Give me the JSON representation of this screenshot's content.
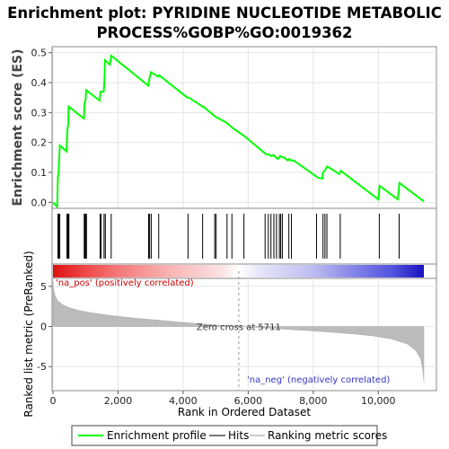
{
  "title_line1": "Enrichment plot: PYRIDINE NUCLEOTIDE METABOLIC",
  "title_line2": "PROCESS%GOBP%GO:0019362",
  "y_label_es": "Enrichment score (ES)",
  "y_label_rank": "Ranked list metric (PreRanked)",
  "x_label": "Rank in Ordered Dataset",
  "pos_label": "'na_pos' (positively correlated)",
  "neg_label": "'na_neg' (negatively correlated)",
  "zero_cross_label": "Zero cross at 5711",
  "legend": {
    "enrichment": "Enrichment profile",
    "hits": "Hits",
    "ranking": "Ranking metric scores"
  },
  "colors": {
    "profile": "#00ff00",
    "hits": "#000000",
    "metric_fill": "#bbbbbb",
    "pos_text": "#cc0000",
    "neg_text": "#3333cc"
  },
  "chart_data": {
    "type": "line",
    "n_genes": 11400,
    "zero_cross": 5711,
    "x_ticks": [
      0,
      2000,
      4000,
      6000,
      8000,
      10000
    ],
    "x_tick_labels": [
      "0",
      "2,000",
      "4,000",
      "6,000",
      "8,000",
      "10,000"
    ],
    "es_ylim": [
      -0.02,
      0.52
    ],
    "es_ticks": [
      0.0,
      0.1,
      0.2,
      0.3,
      0.4,
      0.5
    ],
    "es_tick_labels": [
      "0.0",
      "0.1",
      "0.2",
      "0.3",
      "0.4",
      "0.5"
    ],
    "metric_ylim": [
      -8,
      6
    ],
    "metric_ticks": [
      -5,
      0,
      5
    ],
    "metric_tick_labels": [
      "-5",
      "0",
      "5"
    ],
    "enrichment_profile": [
      [
        0,
        0.0
      ],
      [
        130,
        -0.015
      ],
      [
        150,
        0.08
      ],
      [
        170,
        0.1
      ],
      [
        210,
        0.19
      ],
      [
        420,
        0.17
      ],
      [
        440,
        0.24
      ],
      [
        470,
        0.26
      ],
      [
        480,
        0.32
      ],
      [
        950,
        0.28
      ],
      [
        970,
        0.33
      ],
      [
        1000,
        0.34
      ],
      [
        1020,
        0.375
      ],
      [
        1430,
        0.34
      ],
      [
        1460,
        0.37
      ],
      [
        1490,
        0.37
      ],
      [
        1560,
        0.37
      ],
      [
        1580,
        0.4
      ],
      [
        1600,
        0.475
      ],
      [
        1750,
        0.46
      ],
      [
        1790,
        0.49
      ],
      [
        2930,
        0.39
      ],
      [
        2960,
        0.41
      ],
      [
        3010,
        0.435
      ],
      [
        3230,
        0.42
      ],
      [
        3260,
        0.425
      ],
      [
        4130,
        0.35
      ],
      [
        4180,
        0.35
      ],
      [
        4600,
        0.32
      ],
      [
        4620,
        0.32
      ],
      [
        4950,
        0.29
      ],
      [
        5010,
        0.285
      ],
      [
        5350,
        0.265
      ],
      [
        5500,
        0.25
      ],
      [
        5900,
        0.22
      ],
      [
        6500,
        0.165
      ],
      [
        6550,
        0.16
      ],
      [
        6650,
        0.16
      ],
      [
        6700,
        0.155
      ],
      [
        6780,
        0.158
      ],
      [
        6850,
        0.15
      ],
      [
        6920,
        0.145
      ],
      [
        6980,
        0.155
      ],
      [
        7020,
        0.152
      ],
      [
        7100,
        0.15
      ],
      [
        7220,
        0.14
      ],
      [
        7260,
        0.145
      ],
      [
        7320,
        0.14
      ],
      [
        7400,
        0.14
      ],
      [
        8050,
        0.09
      ],
      [
        8150,
        0.082
      ],
      [
        8280,
        0.08
      ],
      [
        8300,
        0.1
      ],
      [
        8350,
        0.105
      ],
      [
        8430,
        0.12
      ],
      [
        8800,
        0.095
      ],
      [
        8850,
        0.105
      ],
      [
        10000,
        0.01
      ],
      [
        10040,
        0.055
      ],
      [
        10600,
        0.01
      ],
      [
        10650,
        0.065
      ],
      [
        11400,
        0.003
      ]
    ],
    "hit_ranks": [
      150,
      180,
      210,
      430,
      450,
      470,
      490,
      960,
      980,
      1010,
      1030,
      1450,
      1480,
      1570,
      1610,
      1790,
      2940,
      2970,
      3020,
      3250,
      4150,
      4600,
      4970,
      5010,
      5350,
      5500,
      5870,
      6520,
      6620,
      6700,
      6790,
      6870,
      6960,
      7000,
      7050,
      7250,
      7330,
      8100,
      8300,
      8360,
      8420,
      8830,
      10030,
      10640
    ],
    "metric_curve": [
      [
        0,
        5.6
      ],
      [
        20,
        4.6
      ],
      [
        60,
        3.9
      ],
      [
        150,
        3.2
      ],
      [
        300,
        2.7
      ],
      [
        500,
        2.35
      ],
      [
        800,
        2.0
      ],
      [
        1200,
        1.7
      ],
      [
        1800,
        1.35
      ],
      [
        2500,
        1.05
      ],
      [
        3200,
        0.8
      ],
      [
        4000,
        0.5
      ],
      [
        4800,
        0.25
      ],
      [
        5400,
        0.08
      ],
      [
        5711,
        0.0
      ],
      [
        6200,
        -0.1
      ],
      [
        7000,
        -0.3
      ],
      [
        8000,
        -0.55
      ],
      [
        9000,
        -0.85
      ],
      [
        9800,
        -1.15
      ],
      [
        10400,
        -1.55
      ],
      [
        10900,
        -2.2
      ],
      [
        11150,
        -3.0
      ],
      [
        11300,
        -4.0
      ],
      [
        11370,
        -5.5
      ],
      [
        11400,
        -6.9
      ]
    ]
  }
}
